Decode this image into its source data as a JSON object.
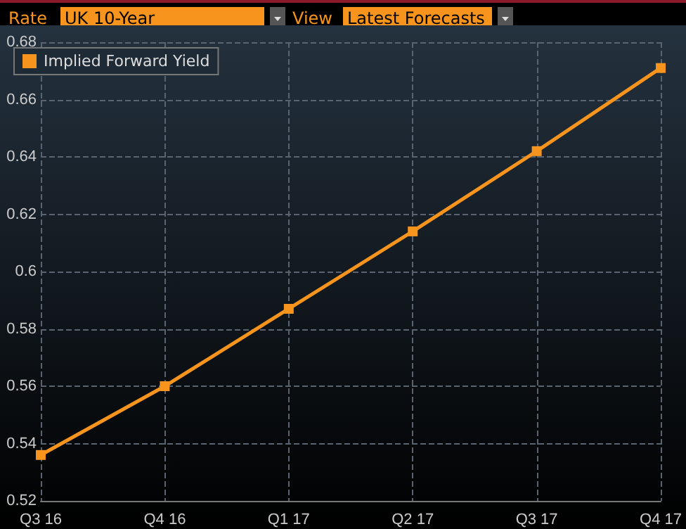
{
  "chart_data": {
    "type": "line",
    "annotations": [
      "Rate",
      "UK 10-Year",
      "View",
      "Latest Forecasts"
    ],
    "categories": [
      "Q3 16",
      "Q4 16",
      "Q1 17",
      "Q2 17",
      "Q3 17",
      "Q4 17"
    ],
    "series": [
      {
        "name": "Implied Forward Yield",
        "color": "#f7941d",
        "values": [
          0.536,
          0.56,
          0.587,
          0.614,
          0.642,
          0.671
        ]
      }
    ],
    "ylim": [
      0.52,
      0.68
    ],
    "yticks": [
      0.52,
      0.54,
      0.56,
      0.58,
      0.6,
      0.62,
      0.64,
      0.66,
      0.68
    ],
    "grid": true,
    "legend": "top left",
    "marker": "square",
    "line_style": "solid"
  }
}
